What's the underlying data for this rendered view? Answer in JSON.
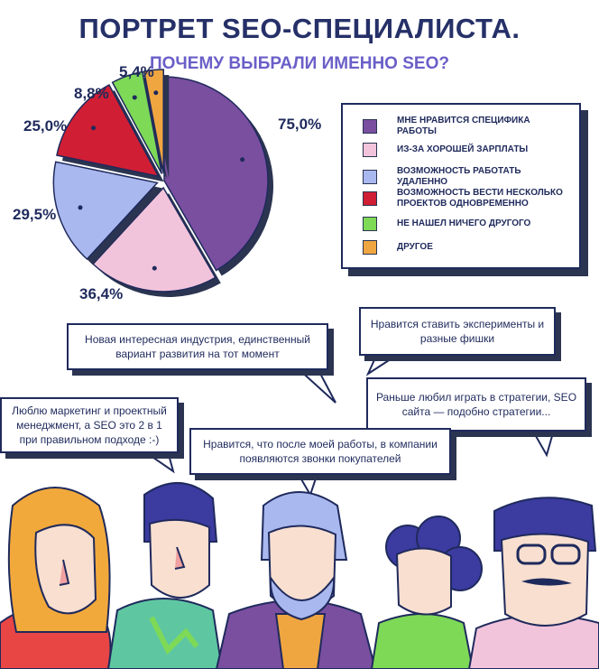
{
  "header": {
    "title": "ПОРТРЕТ SEO-СПЕЦИАЛИСТА.",
    "subtitle": "ПОЧЕМУ ВЫБРАЛИ ИМЕННО SEO?"
  },
  "chart_data": {
    "type": "pie",
    "title": "ПОЧЕМУ ВЫБРАЛИ ИМЕННО SEO?",
    "legend_position": "right",
    "slices": [
      {
        "label": "МНЕ НРАВИТСЯ СПЕЦИФИКА РАБОТЫ",
        "value": 75.0,
        "value_label": "75,0%",
        "color": "#7a4fa0"
      },
      {
        "label": "ИЗ-ЗА ХОРОШЕЙ ЗАРПЛАТЫ",
        "value": 36.4,
        "value_label": "36,4%",
        "color": "#f2c4db"
      },
      {
        "label": "ВОЗМОЖНОСТЬ РАБОТАТЬ УДАЛЕННО",
        "value": 29.5,
        "value_label": "29,5%",
        "color": "#a9b8ee"
      },
      {
        "label": "ВОЗМОЖНОСТЬ ВЕСТИ НЕСКОЛЬКО ПРОЕКТОВ ОДНОВРЕМЕННО",
        "value": 25.0,
        "value_label": "25,0%",
        "color": "#d01e34"
      },
      {
        "label": "НЕ НАШЕЛ НИЧЕГО ДРУГОГО",
        "value": 8.8,
        "value_label": "8,8%",
        "color": "#7ed957"
      },
      {
        "label": "ДРУГОЕ",
        "value": 5.4,
        "value_label": "5,4%",
        "color": "#f0a640"
      }
    ]
  },
  "quotes": {
    "q1": "Новая интересная индустрия, единственный вариант развития на тот момент",
    "q2": "Нравится ставить эксперименты и разные фишки",
    "q3": "Люблю маркетинг и проектный менеджмент, а SEO это 2 в 1 при правильном подходе :-)",
    "q4": "Раньше любил играть в стратегии, SEO сайта — подобно стратегии...",
    "q5": "Нравится, что после моей работы, в компании появляются звонки покупателей"
  }
}
